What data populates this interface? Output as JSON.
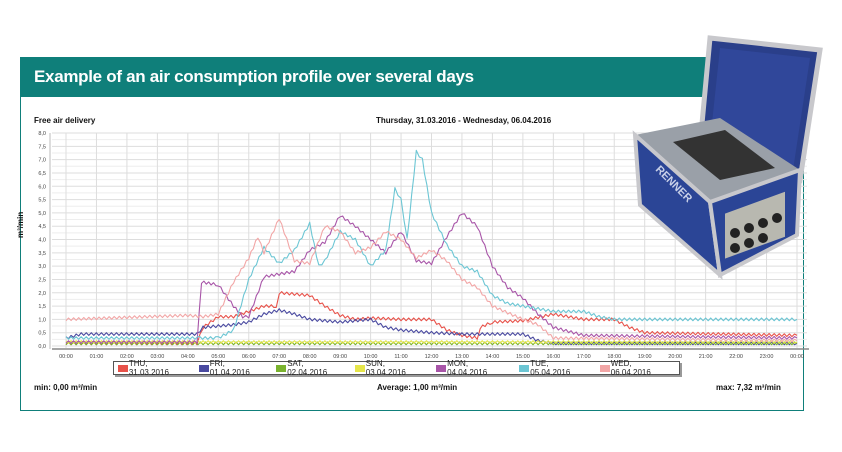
{
  "banner": {
    "title": "Example of an air consumption profile over several days"
  },
  "chart_data": {
    "type": "line",
    "title": "Free air delivery",
    "subtitle": "Thursday, 31.03.2016 - Wednesday, 06.04.2016",
    "ylabel": "m³/min",
    "xlabel": "",
    "ylim": [
      0,
      8
    ],
    "xlim_hours": [
      0,
      24
    ],
    "grid": true,
    "legend_position": "bottom",
    "y_ticks": [
      "0,0",
      "0,5",
      "1,0",
      "1,5",
      "2,0",
      "2,5",
      "3,0",
      "3,5",
      "4,0",
      "4,5",
      "5,0",
      "5,5",
      "6,0",
      "6,5",
      "7,0",
      "7,5",
      "8,0"
    ],
    "x_ticks": [
      "00:00",
      "01:00",
      "02:00",
      "03:00",
      "04:00",
      "05:00",
      "06:00",
      "07:00",
      "08:00",
      "09:00",
      "10:00",
      "11:00",
      "12:00",
      "13:00",
      "14:00",
      "15:00",
      "16:00",
      "17:00",
      "18:00",
      "19:00",
      "20:00",
      "21:00",
      "22:00",
      "23:00",
      "00:00"
    ],
    "series": [
      {
        "name": "THU, 31.03.2016",
        "color": "#e8524a",
        "points": [
          [
            0,
            0.1
          ],
          [
            4.3,
            0.1
          ],
          [
            4.5,
            0.7
          ],
          [
            5,
            1.1
          ],
          [
            5.5,
            1.1
          ],
          [
            6,
            1.3
          ],
          [
            6.5,
            1.5
          ],
          [
            6.9,
            1.5
          ],
          [
            7,
            2.0
          ],
          [
            7.5,
            1.95
          ],
          [
            8,
            1.9
          ],
          [
            8.5,
            1.5
          ],
          [
            9,
            1.15
          ],
          [
            9.5,
            1.0
          ],
          [
            10,
            1.05
          ],
          [
            11,
            1.0
          ],
          [
            12,
            1.0
          ],
          [
            12.5,
            0.6
          ],
          [
            13,
            0.4
          ],
          [
            13.5,
            0.3
          ],
          [
            13.6,
            0.7
          ],
          [
            14,
            0.9
          ],
          [
            15,
            0.95
          ],
          [
            16,
            1.2
          ],
          [
            17,
            1.0
          ],
          [
            18,
            1.0
          ],
          [
            18.5,
            0.7
          ],
          [
            19,
            0.5
          ],
          [
            24,
            0.4
          ]
        ]
      },
      {
        "name": "FRI, 01.04.2016",
        "color": "#4a4aa0",
        "points": [
          [
            0,
            0.3
          ],
          [
            0.5,
            0.45
          ],
          [
            4.3,
            0.45
          ],
          [
            4.5,
            0.7
          ],
          [
            5.5,
            0.8
          ],
          [
            6,
            0.9
          ],
          [
            6.5,
            1.2
          ],
          [
            7,
            1.35
          ],
          [
            7.5,
            1.2
          ],
          [
            8,
            1.0
          ],
          [
            9,
            0.9
          ],
          [
            10,
            1.0
          ],
          [
            10.5,
            0.7
          ],
          [
            11,
            0.6
          ],
          [
            12,
            0.5
          ],
          [
            13,
            0.45
          ],
          [
            15,
            0.45
          ],
          [
            15.5,
            0.2
          ],
          [
            16,
            0.1
          ],
          [
            24,
            0.1
          ]
        ]
      },
      {
        "name": "SAT, 02.04.2016",
        "color": "#7ab32e",
        "points": [
          [
            0,
            0.1
          ],
          [
            24,
            0.1
          ]
        ]
      },
      {
        "name": "SUN, 03.04.2016",
        "color": "#e6e64a",
        "points": [
          [
            0,
            0.15
          ],
          [
            24,
            0.15
          ]
        ]
      },
      {
        "name": "MON, 04.04.2016",
        "color": "#a855a8",
        "points": [
          [
            0,
            0.15
          ],
          [
            4.3,
            0.15
          ],
          [
            4.45,
            2.4
          ],
          [
            5,
            2.3
          ],
          [
            5.5,
            1.5
          ],
          [
            5.8,
            1.1
          ],
          [
            6,
            1.1
          ],
          [
            6.5,
            2.6
          ],
          [
            7,
            2.7
          ],
          [
            7.5,
            2.8
          ],
          [
            8,
            3.6
          ],
          [
            8.5,
            3.9
          ],
          [
            9,
            4.9
          ],
          [
            9.5,
            4.5
          ],
          [
            10,
            4.0
          ],
          [
            10.5,
            3.5
          ],
          [
            11,
            4.3
          ],
          [
            11.5,
            3.2
          ],
          [
            12,
            3.1
          ],
          [
            12.5,
            4.1
          ],
          [
            13,
            5.0
          ],
          [
            13.5,
            4.5
          ],
          [
            14,
            3.0
          ],
          [
            14.5,
            2.2
          ],
          [
            15,
            1.8
          ],
          [
            15.5,
            1.2
          ],
          [
            16,
            0.7
          ],
          [
            17,
            0.4
          ],
          [
            24,
            0.3
          ]
        ]
      },
      {
        "name": "TUE, 05.04.2016",
        "color": "#6cc6d4",
        "points": [
          [
            0,
            0.3
          ],
          [
            4.4,
            0.3
          ],
          [
            5,
            0.3
          ],
          [
            5.5,
            0.6
          ],
          [
            6,
            2.5
          ],
          [
            6.5,
            3.7
          ],
          [
            7,
            3.1
          ],
          [
            7.5,
            3.6
          ],
          [
            8,
            4.6
          ],
          [
            8.3,
            3.0
          ],
          [
            8.5,
            3.2
          ],
          [
            9,
            4.3
          ],
          [
            9.5,
            4.0
          ],
          [
            10,
            3.0
          ],
          [
            10.5,
            3.6
          ],
          [
            10.8,
            5.9
          ],
          [
            11,
            5.5
          ],
          [
            11.2,
            4.0
          ],
          [
            11.5,
            7.3
          ],
          [
            11.7,
            7.0
          ],
          [
            12,
            5.0
          ],
          [
            12.5,
            3.8
          ],
          [
            13,
            3.0
          ],
          [
            13.5,
            2.8
          ],
          [
            14,
            1.9
          ],
          [
            14.5,
            1.6
          ],
          [
            15,
            1.5
          ],
          [
            16,
            1.3
          ],
          [
            17,
            1.3
          ],
          [
            17.5,
            1.1
          ],
          [
            18,
            1.0
          ],
          [
            24,
            1.0
          ]
        ]
      },
      {
        "name": "WED, 06.04.2016",
        "color": "#f2a6a6",
        "points": [
          [
            0,
            1.0
          ],
          [
            4,
            1.15
          ],
          [
            4.5,
            1.1
          ],
          [
            5,
            1.2
          ],
          [
            5.5,
            2.4
          ],
          [
            6,
            3.3
          ],
          [
            6.3,
            4.1
          ],
          [
            6.5,
            3.5
          ],
          [
            7,
            4.8
          ],
          [
            7.5,
            3.2
          ],
          [
            8,
            3.1
          ],
          [
            8.5,
            4.5
          ],
          [
            9,
            4.3
          ],
          [
            9.5,
            3.5
          ],
          [
            10,
            3.7
          ],
          [
            10.5,
            4.3
          ],
          [
            11,
            4.0
          ],
          [
            11.5,
            3.3
          ],
          [
            12,
            3.6
          ],
          [
            12.5,
            3.2
          ],
          [
            13,
            2.5
          ],
          [
            13.5,
            2.2
          ],
          [
            14,
            1.5
          ],
          [
            15,
            1.0
          ],
          [
            15.5,
            0.8
          ],
          [
            16,
            0.3
          ],
          [
            24,
            0.2
          ]
        ]
      }
    ],
    "stats": {
      "min": "min: 0,00 m³/min",
      "average": "Average: 1,00 m³/min",
      "max": "max: 7,32 m³/min"
    }
  }
}
